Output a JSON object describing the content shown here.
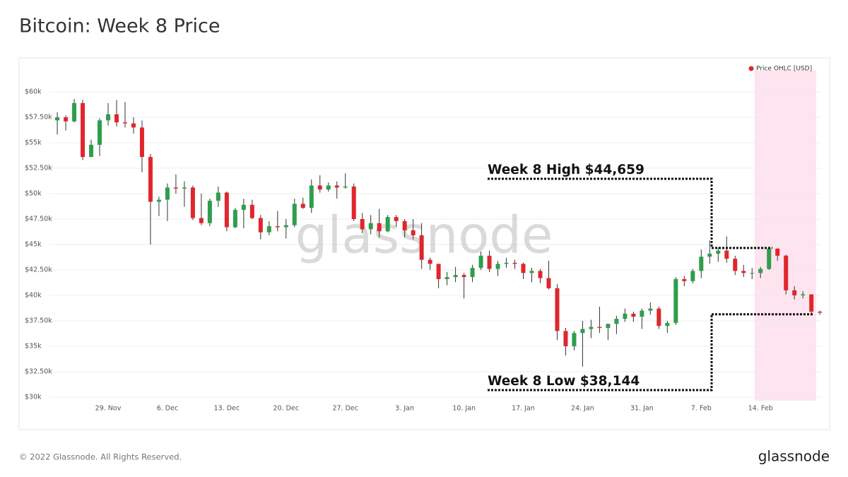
{
  "header": {
    "title": "Bitcoin: Week 8 Price"
  },
  "footer": {
    "copyright": "© 2022 Glassnode. All Rights Reserved.",
    "brand": "glassnode"
  },
  "chart_data": {
    "type": "candlestick",
    "watermark": "glassnode",
    "legend": {
      "position": "top-right"
    },
    "series": [
      {
        "name": "Price OHLC [USD]",
        "color": "#e0262d",
        "up_color": "#2e9e4c",
        "down_color": "#e0262d",
        "open": [
          57200,
          57500,
          57100,
          58900,
          53600,
          54800,
          57200,
          57800,
          57000,
          56900,
          56500,
          53600,
          49200,
          49400,
          50600,
          50500,
          50600,
          47600,
          47100,
          49300,
          50100,
          46700,
          48400,
          48900,
          47600,
          46200,
          46800,
          46700,
          46900,
          49000,
          48600,
          50800,
          50400,
          50800,
          50600,
          50700,
          47500,
          46500,
          47100,
          46300,
          47700,
          47300,
          46400,
          45900,
          43500,
          43100,
          41600,
          41800,
          42000,
          41800,
          42700,
          43900,
          42600,
          43100,
          43200,
          43100,
          42200,
          42400,
          41700,
          40700,
          36500,
          35000,
          36300,
          36700,
          36900,
          36800,
          37200,
          37700,
          38200,
          37900,
          38500,
          38700,
          37000,
          37300,
          41600,
          41400,
          42400,
          43800,
          44100,
          44400,
          43600,
          42400,
          42200,
          42200,
          42600,
          44600,
          43900,
          40500,
          40000,
          40100,
          38400
        ],
        "high": [
          58000,
          57700,
          59300,
          59200,
          55300,
          57400,
          58900,
          59200,
          59000,
          57500,
          57200,
          53900,
          49700,
          51000,
          51900,
          51200,
          50800,
          50000,
          49500,
          50700,
          50200,
          48600,
          49500,
          49400,
          47900,
          47300,
          48300,
          47500,
          49500,
          49600,
          51400,
          51800,
          51100,
          51200,
          52000,
          51000,
          48100,
          47900,
          48500,
          47900,
          47900,
          47500,
          47500,
          47100,
          43700,
          43100,
          42300,
          42800,
          42200,
          43000,
          44300,
          44400,
          43400,
          43700,
          43500,
          43200,
          42700,
          42600,
          43400,
          41100,
          36800,
          36500,
          37500,
          37600,
          38900,
          37200,
          38000,
          38700,
          38400,
          38700,
          39300,
          38900,
          37500,
          41800,
          41900,
          42600,
          44500,
          45400,
          44700,
          45800,
          43900,
          43000,
          42700,
          42800,
          44659,
          44600,
          44000,
          40900,
          40400,
          40100,
          38500
        ],
        "low": [
          55800,
          56200,
          57000,
          53300,
          53600,
          53700,
          56700,
          56600,
          56500,
          55900,
          52100,
          45000,
          47800,
          47300,
          50000,
          48700,
          47400,
          46900,
          46800,
          48700,
          46300,
          46600,
          46600,
          47500,
          45500,
          45900,
          46300,
          45600,
          46700,
          48500,
          48100,
          50100,
          50200,
          49500,
          50500,
          47300,
          46100,
          46000,
          45700,
          46200,
          46700,
          45700,
          45500,
          42600,
          42500,
          40700,
          41000,
          41300,
          39700,
          41300,
          42500,
          42300,
          41900,
          42700,
          42600,
          41600,
          41300,
          41200,
          40600,
          35600,
          34100,
          34600,
          33000,
          35800,
          36300,
          35600,
          36200,
          37400,
          37400,
          36700,
          38100,
          36700,
          36300,
          37100,
          40900,
          41200,
          41700,
          43100,
          43300,
          43200,
          42000,
          41800,
          41600,
          41700,
          42500,
          43400,
          40100,
          39600,
          39700,
          38144,
          38100
        ],
        "close": [
          57500,
          57100,
          58900,
          53600,
          54800,
          57200,
          57800,
          57000,
          56900,
          56500,
          53600,
          49200,
          49400,
          50600,
          50500,
          50600,
          47600,
          47100,
          49300,
          50100,
          46700,
          48400,
          48900,
          47600,
          46200,
          46800,
          46700,
          46900,
          49000,
          48600,
          50800,
          50400,
          50800,
          50600,
          50700,
          47500,
          46500,
          47100,
          46300,
          47700,
          47300,
          46400,
          45900,
          43500,
          43100,
          41600,
          41800,
          42000,
          41800,
          42700,
          43900,
          42600,
          43100,
          43200,
          43100,
          42200,
          42400,
          41700,
          40700,
          36500,
          35000,
          36300,
          36700,
          36900,
          36800,
          37200,
          37700,
          38200,
          37900,
          38500,
          38700,
          37000,
          37300,
          41600,
          41400,
          42400,
          43800,
          44100,
          44400,
          43600,
          42400,
          42200,
          42200,
          42600,
          44600,
          43900,
          40500,
          40000,
          40100,
          38400,
          38300
        ]
      }
    ],
    "categories": [
      null,
      null,
      null,
      null,
      null,
      null,
      "29. Nov",
      null,
      null,
      null,
      null,
      null,
      null,
      "6. Dec",
      null,
      null,
      null,
      null,
      null,
      null,
      "13. Dec",
      null,
      null,
      null,
      null,
      null,
      null,
      "20. Dec",
      null,
      null,
      null,
      null,
      null,
      null,
      "27. Dec",
      null,
      null,
      null,
      null,
      null,
      null,
      "3. Jan",
      null,
      null,
      null,
      null,
      null,
      null,
      "10. Jan",
      null,
      null,
      null,
      null,
      null,
      null,
      "17. Jan",
      null,
      null,
      null,
      null,
      null,
      null,
      "24. Jan",
      null,
      null,
      null,
      null,
      null,
      null,
      "31. Jan",
      null,
      null,
      null,
      null,
      null,
      null,
      "7. Feb",
      null,
      null,
      null,
      null,
      null,
      null,
      "14. Feb",
      null,
      null,
      null,
      null,
      null,
      null,
      null
    ],
    "ylim": [
      30000,
      60000
    ],
    "yticks": [
      {
        "value": 30000,
        "label": "$30k"
      },
      {
        "value": 32500,
        "label": "$32.50k"
      },
      {
        "value": 35000,
        "label": "$35k"
      },
      {
        "value": 37500,
        "label": "$37.50k"
      },
      {
        "value": 40000,
        "label": "$40k"
      },
      {
        "value": 42500,
        "label": "$42.50k"
      },
      {
        "value": 45000,
        "label": "$45k"
      },
      {
        "value": 47500,
        "label": "$47.50k"
      },
      {
        "value": 50000,
        "label": "$50k"
      },
      {
        "value": 52500,
        "label": "$52.50k"
      },
      {
        "value": 55000,
        "label": "$55k"
      },
      {
        "value": 57500,
        "label": "$57.50k"
      },
      {
        "value": 60000,
        "label": "$60k"
      }
    ],
    "grid": true,
    "annotations": [
      {
        "text": "Week 8 High $44,659",
        "value": 44659
      },
      {
        "text": "Week 8 Low $38,144",
        "value": 38144
      }
    ]
  }
}
